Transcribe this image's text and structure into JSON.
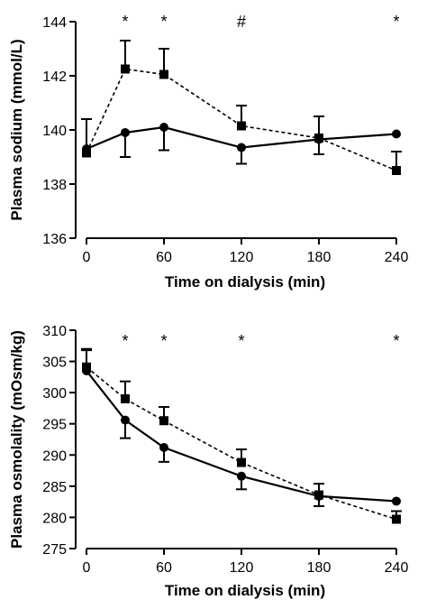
{
  "chart_data": [
    {
      "type": "line",
      "ylabel": "Plasma sodium (mmol/L)",
      "xlabel": "Time on dialysis (min)",
      "xlim": [
        0,
        240
      ],
      "ylim": [
        136,
        144
      ],
      "xticks": [
        0,
        60,
        120,
        180,
        240
      ],
      "yticks": [
        136,
        138,
        140,
        142,
        144
      ],
      "grid": false,
      "x": [
        0,
        30,
        60,
        120,
        180,
        240
      ],
      "series": [
        {
          "marker": "circle",
          "line": "solid",
          "values": [
            139.3,
            139.9,
            140.1,
            139.35,
            139.65,
            139.85
          ],
          "err": [
            1.1,
            0.9,
            0.85,
            0.6,
            0.55,
            0.0
          ]
        },
        {
          "marker": "square",
          "line": "dashed",
          "values": [
            139.15,
            142.25,
            142.05,
            140.15,
            139.7,
            138.5
          ],
          "err": [
            1.25,
            1.05,
            0.95,
            0.75,
            0.8,
            0.7
          ]
        }
      ],
      "annotations": [
        {
          "x": 30,
          "text": "*"
        },
        {
          "x": 60,
          "text": "*"
        },
        {
          "x": 120,
          "text": "#"
        },
        {
          "x": 240,
          "text": "*"
        }
      ]
    },
    {
      "type": "line",
      "ylabel": "Plasma osmolality (mOsm/kg)",
      "xlabel": "Time on dialysis (min)",
      "xlim": [
        0,
        240
      ],
      "ylim": [
        275,
        310
      ],
      "xticks": [
        0,
        60,
        120,
        180,
        240
      ],
      "yticks": [
        275,
        280,
        285,
        290,
        295,
        300,
        305,
        310
      ],
      "grid": false,
      "x": [
        0,
        30,
        60,
        120,
        180,
        240
      ],
      "series": [
        {
          "marker": "circle",
          "line": "solid",
          "values": [
            303.5,
            295.6,
            291.2,
            286.6,
            283.4,
            282.6
          ],
          "err": [
            3.3,
            2.9,
            2.3,
            2.1,
            1.6,
            0.0
          ]
        },
        {
          "marker": "square",
          "line": "dashed",
          "values": [
            304.1,
            299.0,
            295.5,
            288.8,
            283.6,
            279.7
          ],
          "err": [
            2.9,
            2.8,
            2.2,
            2.1,
            1.8,
            1.3
          ]
        }
      ],
      "annotations": [
        {
          "x": 30,
          "text": "*"
        },
        {
          "x": 60,
          "text": "*"
        },
        {
          "x": 120,
          "text": "*"
        },
        {
          "x": 240,
          "text": "*"
        }
      ]
    }
  ]
}
